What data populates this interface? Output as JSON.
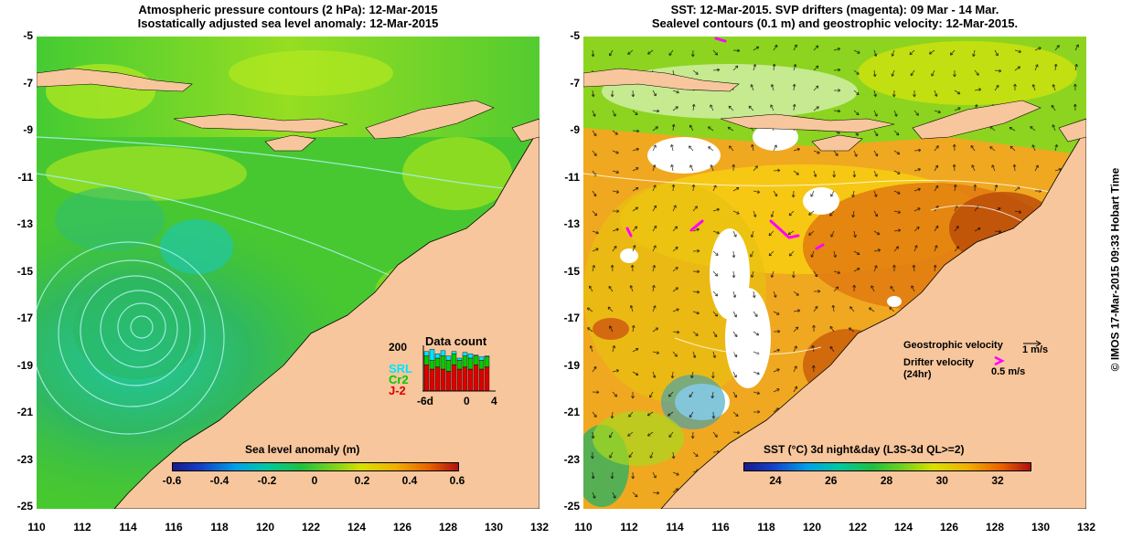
{
  "left_panel": {
    "title_line1": "Atmospheric pressure contours (2 hPa): 12-Mar-2015",
    "title_line2": "Isostatically adjusted sea level anomaly: 12-Mar-2015",
    "colorbar": {
      "title": "Sea level anomaly (m)",
      "ticks": [
        "-0.6",
        "-0.4",
        "-0.2",
        "0",
        "0.2",
        "0.4",
        "0.6"
      ]
    },
    "data_count": {
      "title": "Data count",
      "ymax_label": "200",
      "series": [
        "SRL",
        "Cr2",
        "J-2"
      ],
      "series_colors": [
        "#00e5ff",
        "#00cc00",
        "#dd0000"
      ],
      "x_ticks": [
        "-6d",
        "0",
        "4"
      ]
    }
  },
  "right_panel": {
    "title_line1": "SST: 12-Mar-2015. SVP drifters (magenta): 09 Mar - 14 Mar.",
    "title_line2": "Sealevel contours (0.1 m) and geostrophic velocity: 12-Mar-2015.",
    "colorbar": {
      "title": "SST (°C) 3d night&day (L3S-3d QL>=2)",
      "ticks": [
        "24",
        "26",
        "28",
        "30",
        "32"
      ]
    },
    "legend": {
      "geostrophic_label": "Geostrophic velocity",
      "geostrophic_scale": "1 m/s",
      "drifter_label": "Drifter velocity",
      "drifter_sub": "(24hr)",
      "drifter_scale": "0.5 m/s"
    }
  },
  "axes": {
    "y_ticks": [
      "-5",
      "-7",
      "-9",
      "-11",
      "-13",
      "-15",
      "-17",
      "-19",
      "-21",
      "-23",
      "-25"
    ],
    "x_ticks": [
      "110",
      "112",
      "114",
      "116",
      "118",
      "120",
      "122",
      "124",
      "126",
      "128",
      "130",
      "132"
    ]
  },
  "credit": "© IMOS 17-Mar-2015 09:33 Hobart Time",
  "colors": {
    "land": "#f7c69c",
    "magenta": "#ff00ff"
  }
}
